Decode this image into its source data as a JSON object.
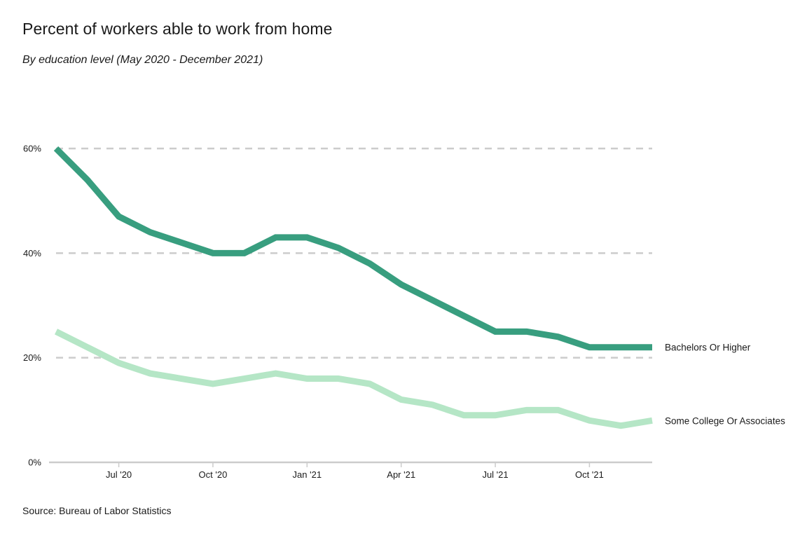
{
  "chart_data": {
    "type": "line",
    "title": "Percent of workers able to work from home",
    "subtitle": "By education level (May 2020 - December 2021)",
    "source": "Source: Bureau of Labor Statistics",
    "xlabel": "",
    "ylabel": "",
    "x": [
      "2020-05",
      "2020-06",
      "2020-07",
      "2020-08",
      "2020-09",
      "2020-10",
      "2020-11",
      "2020-12",
      "2021-01",
      "2021-02",
      "2021-03",
      "2021-04",
      "2021-05",
      "2021-06",
      "2021-07",
      "2021-08",
      "2021-09",
      "2021-10",
      "2021-11",
      "2021-12"
    ],
    "x_ticks": [
      {
        "index": 2,
        "label": "Jul '20"
      },
      {
        "index": 5,
        "label": "Oct '20"
      },
      {
        "index": 8,
        "label": "Jan '21"
      },
      {
        "index": 11,
        "label": "Apr '21"
      },
      {
        "index": 14,
        "label": "Jul '21"
      },
      {
        "index": 17,
        "label": "Oct '21"
      }
    ],
    "y_ticks": [
      {
        "value": 0,
        "label": "0%"
      },
      {
        "value": 20,
        "label": "20%"
      },
      {
        "value": 40,
        "label": "40%"
      },
      {
        "value": 60,
        "label": "60%"
      }
    ],
    "ylim": [
      0,
      60
    ],
    "grid": true,
    "series": [
      {
        "name": "Bachelors Or Higher",
        "color": "#389e7f",
        "values": [
          60,
          54,
          47,
          44,
          42,
          40,
          40,
          43,
          43,
          41,
          38,
          34,
          31,
          28,
          25,
          25,
          24,
          22,
          22,
          22
        ]
      },
      {
        "name": "Some College Or Associates",
        "color": "#b5e6c6",
        "values": [
          25,
          22,
          19,
          17,
          16,
          15,
          16,
          17,
          16,
          16,
          15,
          12,
          11,
          9,
          9,
          10,
          10,
          8,
          7,
          8
        ]
      }
    ]
  }
}
